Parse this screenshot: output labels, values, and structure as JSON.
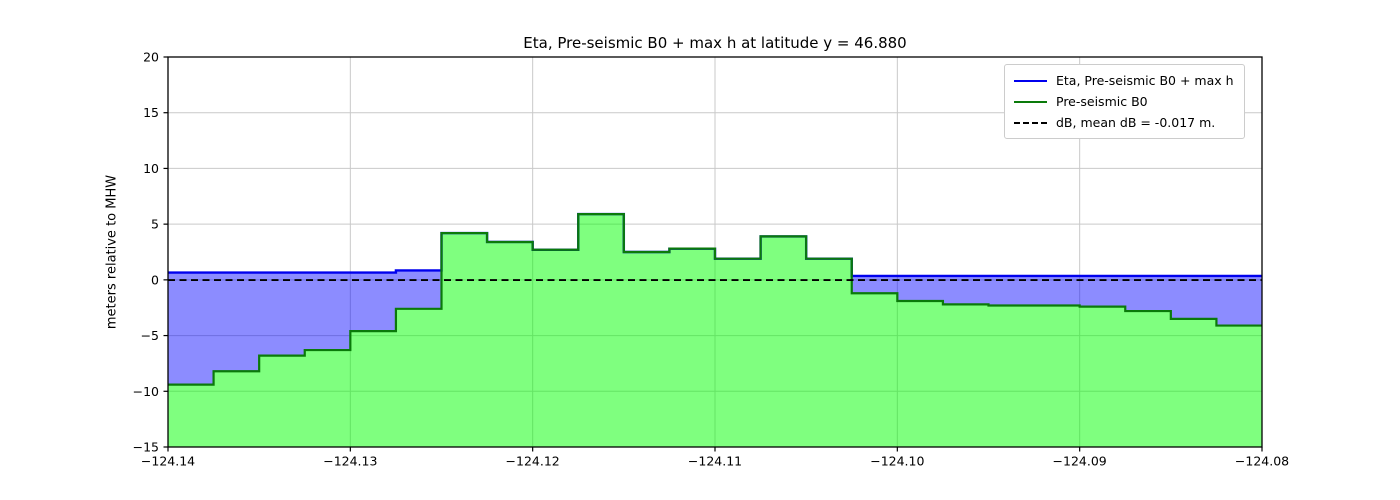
{
  "figure": {
    "background": "#ffffff"
  },
  "chart_data": {
    "type": "area",
    "title": "Eta, Pre-seismic B0 + max h at latitude y = 46.880",
    "xlabel": "",
    "ylabel": "meters relative to MHW",
    "xlim": [
      -124.14,
      -124.08
    ],
    "ylim": [
      -15,
      20
    ],
    "grid": true,
    "legend_position": "upper right",
    "xticks": [
      {
        "value": -124.14,
        "label": "−124.14"
      },
      {
        "value": -124.13,
        "label": "−124.13"
      },
      {
        "value": -124.12,
        "label": "−124.12"
      },
      {
        "value": -124.11,
        "label": "−124.11"
      },
      {
        "value": -124.1,
        "label": "−124.10"
      },
      {
        "value": -124.09,
        "label": "−124.09"
      },
      {
        "value": -124.08,
        "label": "−124.08"
      }
    ],
    "yticks": [
      {
        "value": -15,
        "label": "−15"
      },
      {
        "value": -10,
        "label": "−10"
      },
      {
        "value": -5,
        "label": "−5"
      },
      {
        "value": 0,
        "label": "0"
      },
      {
        "value": 5,
        "label": "5"
      },
      {
        "value": 10,
        "label": "10"
      },
      {
        "value": 15,
        "label": "15"
      },
      {
        "value": 20,
        "label": "20"
      }
    ],
    "step_lon_start": -124.14,
    "step_width_deg": 0.0025,
    "series": [
      {
        "name": "Eta, Pre-seismic B0 + max h",
        "type": "step-area",
        "line_color": "#0000ee",
        "fill_color": "rgba(0,0,255,0.45)",
        "combine": "max-with-topo",
        "values": [
          0.65,
          0.65,
          0.65,
          0.65,
          0.65,
          0.85,
          0.35,
          0.35,
          0.35,
          0.35,
          0.35,
          0.35,
          0.35,
          0.35,
          0.35,
          0.35,
          0.35,
          0.35,
          0.35,
          0.35,
          0.35,
          0.35,
          0.35,
          0.35
        ]
      },
      {
        "name": "Pre-seismic B0",
        "type": "step-area",
        "line_color": "#0a7a0a",
        "fill_color": "rgba(0,255,0,0.5)",
        "fill_to": -15,
        "values": [
          -9.4,
          -8.2,
          -6.8,
          -6.3,
          -4.6,
          -2.6,
          4.2,
          3.4,
          2.7,
          5.9,
          2.5,
          2.8,
          1.9,
          3.9,
          1.9,
          -1.2,
          -1.9,
          -2.2,
          -2.3,
          -2.3,
          -2.4,
          -2.8,
          -3.5,
          -4.1
        ]
      },
      {
        "name": "dB, mean dB = -0.017 m.",
        "type": "hline-dashed",
        "line_color": "#000000",
        "y": -0.017
      }
    ]
  },
  "colors": {
    "grid": "#c9c9c9",
    "axis": "#000000",
    "legend_border": "#cccccc"
  }
}
